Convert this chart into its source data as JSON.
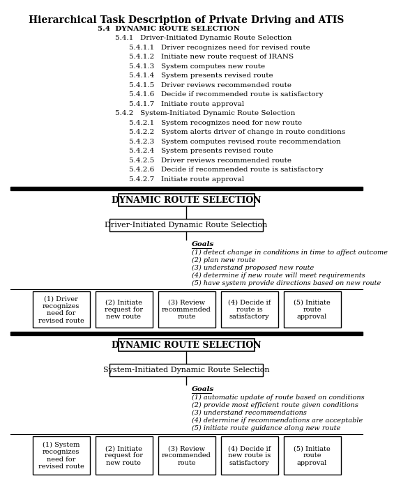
{
  "title": "Hierarchical Task Description of Private Driving and ATIS",
  "outline_text": [
    {
      "text": "5.4  DYNAMIC ROUTE SELECTION",
      "indent": 0,
      "bold": true,
      "size": 9
    },
    {
      "text": "5.4.1   Driver-Initiated Dynamic Route Selection",
      "indent": 1,
      "bold": false,
      "size": 9
    },
    {
      "text": "5.4.1.1   Driver recognizes need for revised route",
      "indent": 2,
      "bold": false,
      "size": 9
    },
    {
      "text": "5.4.1.2   Initiate new route request of IRANS",
      "indent": 2,
      "bold": false,
      "size": 9
    },
    {
      "text": "5.4.1.3   System computes new route",
      "indent": 2,
      "bold": false,
      "size": 9
    },
    {
      "text": "5.4.1.4   System presents revised route",
      "indent": 2,
      "bold": false,
      "size": 9
    },
    {
      "text": "5.4.1.5   Driver reviews recommended route",
      "indent": 2,
      "bold": false,
      "size": 9
    },
    {
      "text": "5.4.1.6   Decide if recommended route is satisfactory",
      "indent": 2,
      "bold": false,
      "size": 9
    },
    {
      "text": "5.4.1.7   Initiate route approval",
      "indent": 2,
      "bold": false,
      "size": 9
    },
    {
      "text": "5.4.2   System-Initiated Dynamic Route Selection",
      "indent": 1,
      "bold": false,
      "size": 9
    },
    {
      "text": "5.4.2.1   System recognizes need for new route",
      "indent": 2,
      "bold": false,
      "size": 9
    },
    {
      "text": "5.4.2.2   System alerts driver of change in route conditions",
      "indent": 2,
      "bold": false,
      "size": 9
    },
    {
      "text": "5.4.2.3   System computes revised route recommendation",
      "indent": 2,
      "bold": false,
      "size": 9
    },
    {
      "text": "5.4.2.4   System presents revised route",
      "indent": 2,
      "bold": false,
      "size": 9
    },
    {
      "text": "5.4.2.5   Driver reviews recommended route",
      "indent": 2,
      "bold": false,
      "size": 9
    },
    {
      "text": "5.4.2.6   Decide if recommended route is satisfactory",
      "indent": 2,
      "bold": false,
      "size": 9
    },
    {
      "text": "5.4.2.7   Initiate route approval",
      "indent": 2,
      "bold": false,
      "size": 9
    }
  ],
  "section1": {
    "top_box": "DYNAMIC ROUTE SELECTION",
    "mid_box": "Driver-Initiated Dynamic Route Selection",
    "goals_label": "Goals",
    "goals": [
      "(1) detect change in conditions in time to affect outcome",
      "(2) plan new route",
      "(3) understand proposed new route",
      "(4) determine if new route will meet requirements",
      "(5) have system provide directions based on new route"
    ],
    "leaf_boxes": [
      "(1) Driver\nrecognizes\nneed for\nrevised route",
      "(2) Initiate\nrequest for\nnew route",
      "(3) Review\nrecommended\nroute",
      "(4) Decide if\nroute is\nsatisfactory",
      "(5) Initiate\nroute\napproval"
    ]
  },
  "section2": {
    "top_box": "DYNAMIC ROUTE SELECTION",
    "mid_box": "System-Initiated Dynamic Route Selection",
    "goals_label": "Goals",
    "goals": [
      "(1) automatic update of route based on conditions",
      "(2) provide most efficient route given conditions",
      "(3) understand recommendations",
      "(4) determine if recommendations are acceptable",
      "(5) initiate route guidance along new route"
    ],
    "leaf_boxes": [
      "(1) System\nrecognizes\nneed for\nrevised route",
      "(2) Initiate\nrequest for\nnew route",
      "(3) Review\nrecommended\nroute",
      "(4) Decide if\nnew route is\nsatisfactory",
      "(5) Initiate\nroute\napproval"
    ]
  }
}
